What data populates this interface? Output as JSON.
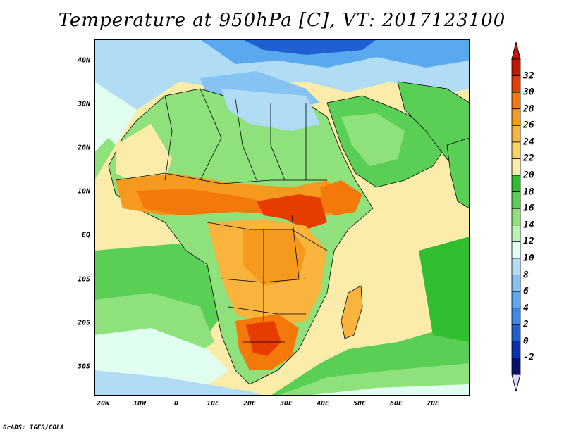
{
  "title": "Temperature at 950hPa [C], VT: 2017123100",
  "y_ticks": [
    "40N",
    "30N",
    "20N",
    "10N",
    "EQ",
    "10S",
    "20S",
    "30S"
  ],
  "x_ticks": [
    "20W",
    "10W",
    "0",
    "10E",
    "20E",
    "30E",
    "40E",
    "50E",
    "60E",
    "70E"
  ],
  "colorbar": {
    "labels": [
      "32",
      "30",
      "28",
      "26",
      "24",
      "22",
      "20",
      "18",
      "16",
      "14",
      "12",
      "10",
      "8",
      "6",
      "4",
      "2",
      "0",
      "-2"
    ],
    "colors_top_to_bottom": [
      "#c81400",
      "#e63c00",
      "#f5780a",
      "#f69a1f",
      "#f8b43c",
      "#fad260",
      "#fcecaa",
      "#2fbe2f",
      "#5acf55",
      "#8ee17b",
      "#bdf2b2",
      "#e1fff0",
      "#b0dcf6",
      "#87c3f2",
      "#5aa8ee",
      "#3c8ae6",
      "#1e60d2",
      "#0a32b0",
      "#03106e"
    ],
    "end_arrows": {
      "top": "#c81400",
      "bottom": "#d7d7fc"
    }
  },
  "map": {
    "region": "Africa and Arabia, 23W–80E, 37S–45N",
    "colors": {
      "ocean_mid": "#fcecaa",
      "ocean_south": "#5acf55",
      "ocean_south_light": "#bdf2b2",
      "mediterranean": "#87c3f2",
      "atlantic_north": "#b0dcf6",
      "sahara": "#8ee17b",
      "sahel_hot": "#f69a1f",
      "central_africa": "#f8b43c",
      "east_africa_hot": "#e63c00",
      "kalahari": "#e63c00",
      "arabia": "#5acf55",
      "border_lines": "#000000"
    }
  },
  "footer": "GrADS: IGES/COLA"
}
